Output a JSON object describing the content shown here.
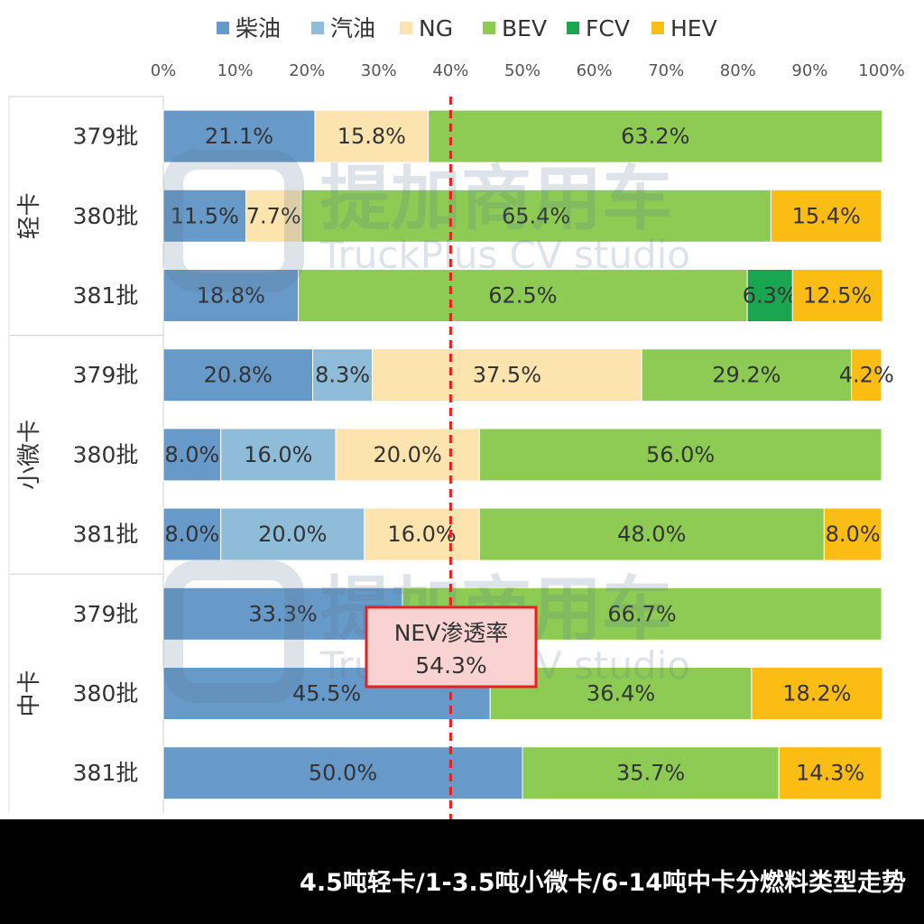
{
  "chart_data": {
    "type": "bar",
    "orientation": "horizontal",
    "stacked": true,
    "percent_axis_labels": [
      "0%",
      "10%",
      "20%",
      "30%",
      "40%",
      "50%",
      "60%",
      "70%",
      "80%",
      "90%",
      "100%"
    ],
    "xlim": [
      0,
      100
    ],
    "legend_position": "top",
    "series": [
      {
        "name": "柴油",
        "color": "#6799c9"
      },
      {
        "name": "汽油",
        "color": "#8fbcd9"
      },
      {
        "name": "NG",
        "color": "#fde3ae"
      },
      {
        "name": "BEV",
        "color": "#8dcb55"
      },
      {
        "name": "FCV",
        "color": "#1aa650"
      },
      {
        "name": "HEV",
        "color": "#fbbc14"
      }
    ],
    "groups": [
      {
        "name": "轻卡",
        "rows": [
          {
            "label": "379批",
            "segments": [
              {
                "series": "柴油",
                "value": 21.1,
                "label": "21.1%"
              },
              {
                "series": "NG",
                "value": 15.8,
                "label": "15.8%"
              },
              {
                "series": "BEV",
                "value": 63.2,
                "label": "63.2%"
              }
            ]
          },
          {
            "label": "380批",
            "segments": [
              {
                "series": "柴油",
                "value": 11.5,
                "label": "11.5%"
              },
              {
                "series": "NG",
                "value": 7.7,
                "label": "7.7%"
              },
              {
                "series": "BEV",
                "value": 65.4,
                "label": "65.4%"
              },
              {
                "series": "HEV",
                "value": 15.4,
                "label": "15.4%"
              }
            ]
          },
          {
            "label": "381批",
            "segments": [
              {
                "series": "柴油",
                "value": 18.8,
                "label": "18.8%"
              },
              {
                "series": "BEV",
                "value": 62.5,
                "label": "62.5%"
              },
              {
                "series": "FCV",
                "value": 6.3,
                "label": "6.3%"
              },
              {
                "series": "HEV",
                "value": 12.5,
                "label": "12.5%"
              }
            ]
          }
        ]
      },
      {
        "name": "小微卡",
        "rows": [
          {
            "label": "379批",
            "segments": [
              {
                "series": "柴油",
                "value": 20.8,
                "label": "20.8%"
              },
              {
                "series": "汽油",
                "value": 8.3,
                "label": "8.3%"
              },
              {
                "series": "NG",
                "value": 37.5,
                "label": "37.5%"
              },
              {
                "series": "BEV",
                "value": 29.2,
                "label": "29.2%"
              },
              {
                "series": "HEV",
                "value": 4.2,
                "label": "4.2%"
              }
            ]
          },
          {
            "label": "380批",
            "segments": [
              {
                "series": "柴油",
                "value": 8.0,
                "label": "8.0%"
              },
              {
                "series": "汽油",
                "value": 16.0,
                "label": "16.0%"
              },
              {
                "series": "NG",
                "value": 20.0,
                "label": "20.0%"
              },
              {
                "series": "BEV",
                "value": 56.0,
                "label": "56.0%"
              }
            ]
          },
          {
            "label": "381批",
            "segments": [
              {
                "series": "柴油",
                "value": 8.0,
                "label": "8.0%"
              },
              {
                "series": "汽油",
                "value": 20.0,
                "label": "20.0%"
              },
              {
                "series": "NG",
                "value": 16.0,
                "label": "16.0%"
              },
              {
                "series": "BEV",
                "value": 48.0,
                "label": "48.0%"
              },
              {
                "series": "HEV",
                "value": 8.0,
                "label": "8.0%"
              }
            ]
          }
        ]
      },
      {
        "name": "中卡",
        "rows": [
          {
            "label": "379批",
            "segments": [
              {
                "series": "柴油",
                "value": 33.3,
                "label": "33.3%"
              },
              {
                "series": "BEV",
                "value": 66.7,
                "label": "66.7%"
              }
            ]
          },
          {
            "label": "380批",
            "segments": [
              {
                "series": "柴油",
                "value": 45.5,
                "label": "45.5%"
              },
              {
                "series": "BEV",
                "value": 36.4,
                "label": "36.4%"
              },
              {
                "series": "HEV",
                "value": 18.2,
                "label": "18.2%"
              }
            ]
          },
          {
            "label": "381批",
            "segments": [
              {
                "series": "柴油",
                "value": 50.0,
                "label": "50.0%"
              },
              {
                "series": "BEV",
                "value": 35.7,
                "label": "35.7%"
              },
              {
                "series": "HEV",
                "value": 14.3,
                "label": "14.3%"
              }
            ]
          }
        ]
      }
    ],
    "reference_line": {
      "value": 40,
      "color": "#e8201f"
    },
    "annotation": {
      "line1": "NEV渗透率",
      "line2": "54.3%",
      "at_value": 40,
      "border_color": "#e8201f",
      "fill_color": "#f8d3d1"
    },
    "watermark": {
      "text_cn": "提加商用车",
      "text_en": "TruckPlus CV studio"
    }
  },
  "caption": "4.5吨轻卡/1-3.5吨小微卡/6-14吨中卡分燃料类型走势"
}
